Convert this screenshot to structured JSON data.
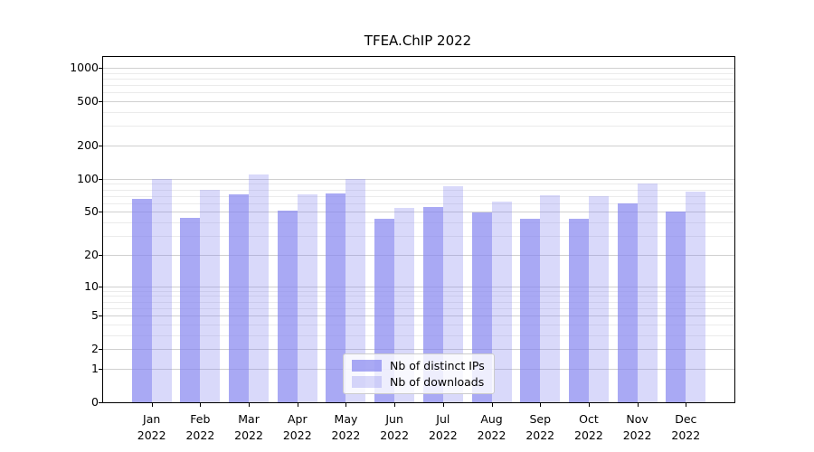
{
  "title": "TFEA.ChIP 2022",
  "colors": {
    "bar_distinct_ips": "rgba(132,132,240,0.70)",
    "bar_downloads": "rgba(132,132,240,0.31)",
    "grid_major": "#d0d0d0",
    "grid_minor": "#ebebeb",
    "axis": "#000000",
    "legend_border": "#cccccc"
  },
  "chart_data": {
    "type": "bar",
    "title": "TFEA.ChIP 2022",
    "categories": [
      "Jan 2022",
      "Feb 2022",
      "Mar 2022",
      "Apr 2022",
      "May 2022",
      "Jun 2022",
      "Jul 2022",
      "Aug 2022",
      "Sep 2022",
      "Oct 2022",
      "Nov 2022",
      "Dec 2022"
    ],
    "series": [
      {
        "name": "Nb of distinct IPs",
        "values": [
          66,
          44,
          72,
          51,
          73,
          43,
          55,
          49,
          43,
          43,
          60,
          50
        ]
      },
      {
        "name": "Nb of downloads",
        "values": [
          100,
          79,
          110,
          72,
          100,
          54,
          85,
          62,
          71,
          70,
          91,
          77
        ]
      }
    ],
    "yscale": "log1p",
    "ylim": [
      0,
      1250
    ],
    "y_major_ticks": [
      0,
      1,
      2,
      5,
      10,
      20,
      50,
      100,
      200,
      500,
      1000
    ],
    "y_minor_ticks": [
      3,
      4,
      6,
      7,
      8,
      9,
      30,
      40,
      60,
      70,
      80,
      90,
      300,
      400,
      600,
      700,
      800,
      900
    ],
    "grid": true,
    "legend_position": "lower center"
  }
}
